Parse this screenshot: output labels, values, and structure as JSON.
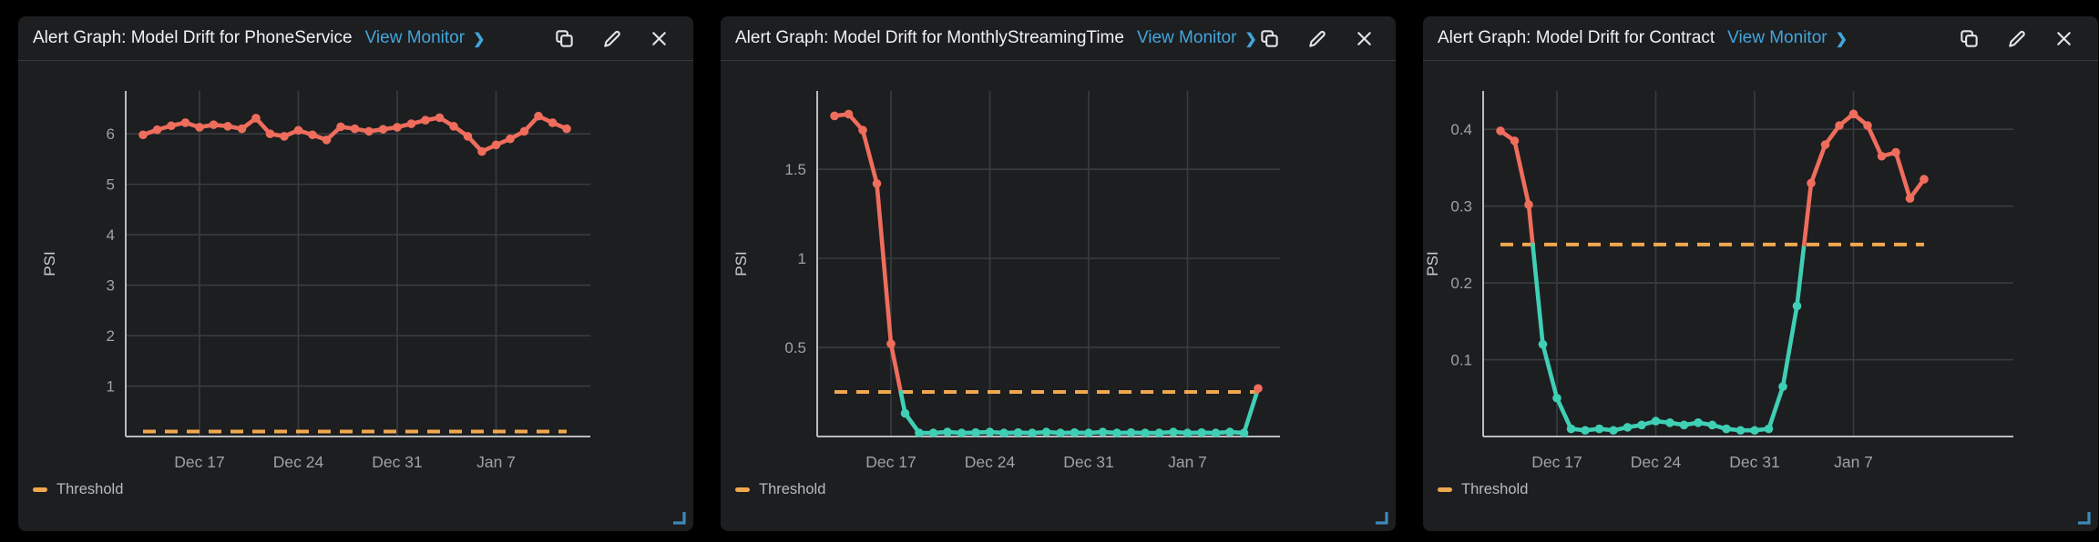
{
  "colors": {
    "page_bg": "#000000",
    "panel_bg": "#1d1e20",
    "line_above_threshold": "#ef6d5c",
    "line_below_threshold": "#3fcfb4",
    "threshold": "#f0a84f",
    "link": "#42a5dc",
    "grid": "#383c41",
    "axis_spine": "#b9bbbd",
    "tick_text": "#9da2a8",
    "axis_label_text": "#c9ccd0",
    "title_text": "#f0f1f2",
    "legend_text": "#b6bac0",
    "icon": "#e3e4e6",
    "resize_handle": "#3d89b8"
  },
  "panels": [
    {
      "title": "Alert Graph: Model Drift for PhoneService",
      "link_label": "View Monitor",
      "link_chevron": "❯",
      "icons": [
        "copy-icon",
        "edit-icon",
        "close-icon"
      ],
      "legend_label": "Threshold"
    },
    {
      "title": "Alert Graph: Model Drift for MonthlyStreamingTime",
      "link_label": "View Monitor",
      "link_chevron": "❯",
      "icons": [
        "copy-icon",
        "edit-icon",
        "close-icon"
      ],
      "legend_label": "Threshold"
    },
    {
      "title": "Alert Graph: Model Drift for Contract",
      "link_label": "View Monitor",
      "link_chevron": "❯",
      "icons": [
        "copy-icon",
        "edit-icon",
        "close-icon"
      ],
      "legend_label": "Threshold"
    }
  ],
  "chart_data": [
    {
      "type": "line",
      "title": "Alert Graph: Model Drift for PhoneService",
      "ylabel": "PSI",
      "x_tick_labels": [
        "Dec 17",
        "Dec 24",
        "Dec 31",
        "Jan 7"
      ],
      "x_tick_indices": [
        4,
        11,
        18,
        25
      ],
      "y_tick_values": [
        1,
        2,
        3,
        4,
        5,
        6
      ],
      "y_tick_labels": [
        "1",
        "2",
        "3",
        "4",
        "5",
        "6"
      ],
      "ylim": [
        0,
        6.85
      ],
      "grid": true,
      "legend_position": "bottom-left",
      "threshold": 0.1,
      "series": [
        {
          "name": "PSI",
          "values": [
            5.98,
            6.08,
            6.16,
            6.22,
            6.13,
            6.18,
            6.15,
            6.1,
            6.31,
            6.0,
            5.95,
            6.07,
            5.98,
            5.88,
            6.14,
            6.1,
            6.05,
            6.09,
            6.13,
            6.2,
            6.27,
            6.32,
            6.15,
            5.95,
            5.65,
            5.78,
            5.9,
            6.05,
            6.35,
            6.22,
            6.1
          ]
        }
      ]
    },
    {
      "type": "line",
      "title": "Alert Graph: Model Drift for MonthlyStreamingTime",
      "ylabel": "PSI",
      "x_tick_labels": [
        "Dec 17",
        "Dec 24",
        "Dec 31",
        "Jan 7"
      ],
      "x_tick_indices": [
        4,
        11,
        18,
        25
      ],
      "y_tick_values": [
        0.5,
        1,
        1.5
      ],
      "y_tick_labels": [
        "0.5",
        "1",
        "1.5"
      ],
      "ylim": [
        0,
        1.94
      ],
      "grid": true,
      "legend_position": "bottom-left",
      "threshold": 0.25,
      "series": [
        {
          "name": "PSI",
          "values": [
            1.8,
            1.81,
            1.72,
            1.42,
            0.52,
            0.13,
            0.02,
            0.02,
            0.025,
            0.02,
            0.022,
            0.025,
            0.02,
            0.022,
            0.02,
            0.025,
            0.02,
            0.022,
            0.02,
            0.025,
            0.02,
            0.022,
            0.02,
            0.02,
            0.025,
            0.02,
            0.022,
            0.02,
            0.025,
            0.02,
            0.27
          ]
        }
      ]
    },
    {
      "type": "line",
      "title": "Alert Graph: Model Drift for Contract",
      "ylabel": "PSI",
      "x_tick_labels": [
        "Dec 17",
        "Dec 24",
        "Dec 31",
        "Jan 7"
      ],
      "x_tick_indices": [
        4,
        11,
        18,
        25
      ],
      "y_tick_values": [
        0.1,
        0.2,
        0.3,
        0.4
      ],
      "y_tick_labels": [
        "0.1",
        "0.2",
        "0.3",
        "0.4"
      ],
      "ylim": [
        0,
        0.45
      ],
      "grid": true,
      "legend_position": "bottom-left",
      "threshold": 0.25,
      "series": [
        {
          "name": "PSI",
          "values": [
            0.398,
            0.385,
            0.302,
            0.12,
            0.05,
            0.01,
            0.008,
            0.01,
            0.008,
            0.012,
            0.015,
            0.02,
            0.018,
            0.015,
            0.018,
            0.015,
            0.01,
            0.008,
            0.008,
            0.01,
            0.065,
            0.17,
            0.33,
            0.38,
            0.405,
            0.42,
            0.405,
            0.365,
            0.37,
            0.31,
            0.335
          ]
        }
      ]
    }
  ]
}
